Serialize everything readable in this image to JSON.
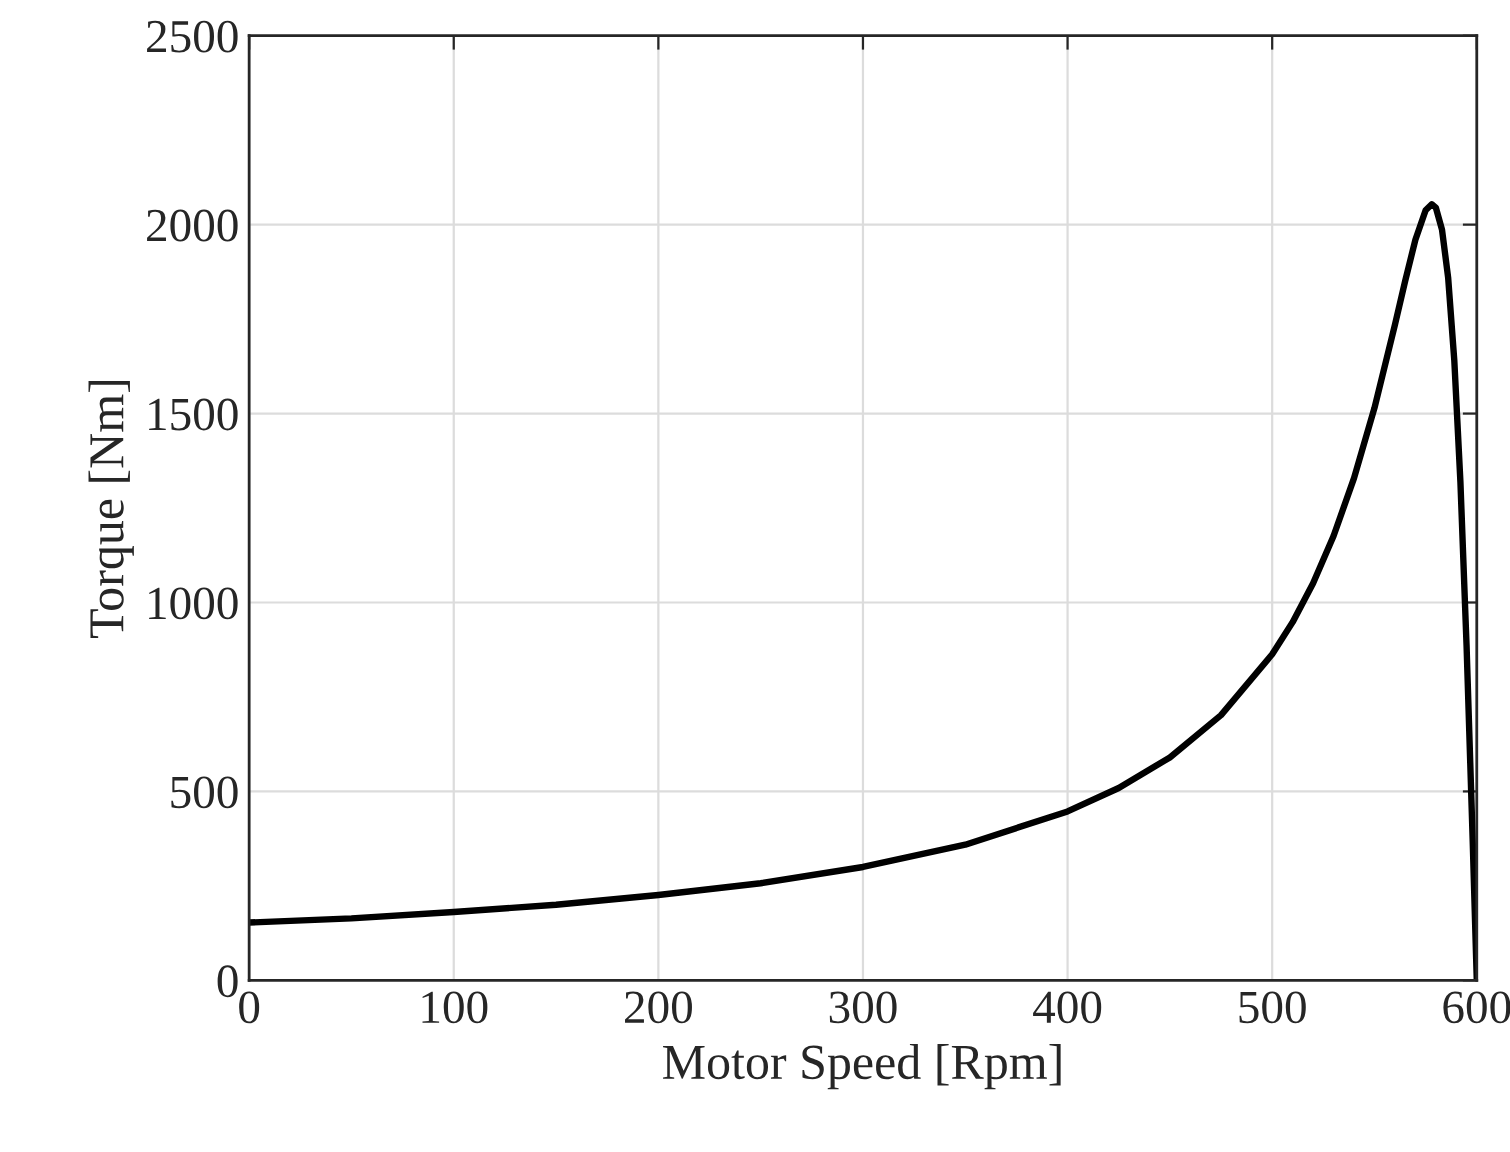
{
  "chart_data": {
    "type": "line",
    "xlabel": "Motor Speed [Rpm]",
    "ylabel": "Torque [Nm]",
    "x": [
      0,
      50,
      100,
      150,
      200,
      250,
      300,
      350,
      400,
      425,
      450,
      475,
      500,
      510,
      520,
      530,
      540,
      550,
      560,
      565,
      570,
      575,
      578,
      580,
      583,
      586,
      589,
      592,
      595,
      598,
      600
    ],
    "series": [
      {
        "color": "#000000",
        "values": [
          153,
          164,
          181,
          200,
          226,
          257,
          300,
          359,
          447,
          509,
          590,
          702,
          863,
          948,
          1051,
          1176,
          1329,
          1515,
          1735,
          1851,
          1960,
          2038,
          2054,
          2045,
          1987,
          1860,
          1642,
          1319,
          887,
          370,
          0
        ]
      }
    ],
    "xlim": [
      0,
      600
    ],
    "xticks": [
      0,
      100,
      200,
      300,
      400,
      500,
      600
    ],
    "ylim": [
      0,
      2500
    ],
    "yticks": [
      0,
      500,
      1000,
      1500,
      2000,
      2500
    ],
    "grid": true,
    "legend": false,
    "marker": "none",
    "line_style": "solid"
  }
}
